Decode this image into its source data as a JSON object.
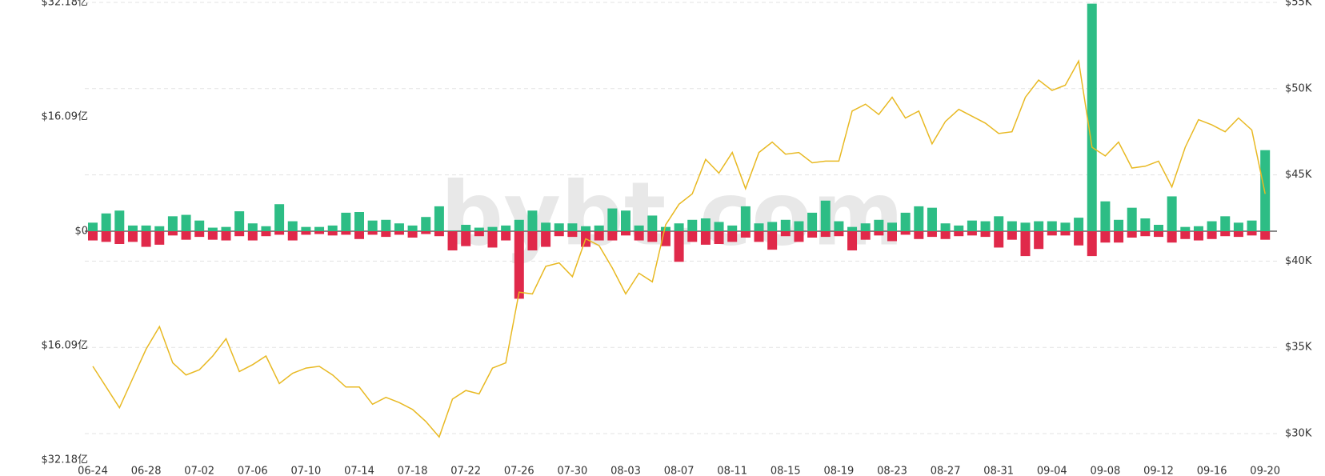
{
  "chart_data": {
    "type": "bar-line",
    "watermark": "bybt.com",
    "categories": [
      "06-24",
      null,
      null,
      null,
      "06-28",
      null,
      null,
      null,
      "07-02",
      null,
      null,
      null,
      "07-06",
      null,
      null,
      null,
      "07-10",
      null,
      null,
      null,
      "07-14",
      null,
      null,
      null,
      "07-18",
      null,
      null,
      null,
      "07-22",
      null,
      null,
      null,
      "07-26",
      null,
      null,
      null,
      "07-30",
      null,
      null,
      null,
      "08-03",
      null,
      null,
      null,
      "08-07",
      null,
      null,
      null,
      "08-11",
      null,
      null,
      null,
      "08-15",
      null,
      null,
      null,
      "08-19",
      null,
      null,
      null,
      "08-23",
      null,
      null,
      null,
      "08-27",
      null,
      null,
      null,
      "08-31",
      null,
      null,
      null,
      "09-04",
      null,
      null,
      null,
      "09-08",
      null,
      null,
      null,
      "09-12",
      null,
      null,
      null,
      "09-16",
      null,
      null,
      null,
      "09-20"
    ],
    "ylim": [
      -32.18,
      32.18
    ],
    "yticks": [
      {
        "value": 32.18,
        "label": "$32.18亿"
      },
      {
        "value": 16.09,
        "label": "$16.09亿"
      },
      {
        "value": 0,
        "label": "$0"
      },
      {
        "value": -16.09,
        "label": "$16.09亿"
      },
      {
        "value": -32.18,
        "label": "$32.18亿"
      }
    ],
    "y2lim": [
      30000,
      55000
    ],
    "y2ticks": [
      {
        "value": 55000,
        "label": "$55K"
      },
      {
        "value": 50000,
        "label": "$50K"
      },
      {
        "value": 45000,
        "label": "$45K"
      },
      {
        "value": 40000,
        "label": "$40K"
      },
      {
        "value": 35000,
        "label": "$35K"
      },
      {
        "value": 30000,
        "label": "$30K"
      }
    ],
    "grid": true,
    "series": [
      {
        "type": "bar",
        "color": "#2dbd85",
        "values": [
          1.2,
          2.5,
          2.9,
          0.8,
          0.8,
          0.7,
          2.1,
          2.3,
          1.5,
          0.5,
          0.6,
          2.8,
          1.1,
          0.7,
          3.8,
          1.4,
          0.6,
          0.6,
          0.8,
          2.6,
          2.7,
          1.5,
          1.6,
          1.1,
          0.8,
          2.0,
          3.5,
          0.1,
          0.9,
          0.5,
          0.6,
          0.8,
          1.6,
          2.9,
          1.2,
          1.1,
          1.1,
          0.7,
          0.8,
          3.2,
          2.9,
          0.8,
          2.2,
          0.6,
          1.1,
          1.6,
          1.8,
          1.3,
          0.8,
          3.5,
          1.1,
          1.3,
          1.6,
          1.4,
          2.6,
          4.3,
          1.4,
          0.6,
          1.1,
          1.6,
          1.2,
          2.6,
          3.5,
          3.3,
          1.1,
          0.8,
          1.5,
          1.4,
          2.1,
          1.4,
          1.2,
          1.4,
          1.4,
          1.2,
          1.9,
          32,
          4.2,
          1.6,
          3.3,
          1.8,
          0.9,
          4.9,
          0.6,
          0.7,
          1.4,
          2.1,
          1.2,
          1.5,
          11.4
        ]
      },
      {
        "type": "bar",
        "color": "#e0294a",
        "values": [
          -1.3,
          -1.5,
          -1.8,
          -1.5,
          -2.2,
          -1.9,
          -0.6,
          -1.2,
          -0.8,
          -1.2,
          -1.3,
          -0.7,
          -1.3,
          -0.7,
          -0.5,
          -1.3,
          -0.5,
          -0.4,
          -0.6,
          -0.5,
          -1.1,
          -0.5,
          -0.8,
          -0.5,
          -0.9,
          -0.4,
          -0.7,
          -2.7,
          -2.1,
          -0.7,
          -2.3,
          -1.3,
          -9.5,
          -2.7,
          -2.2,
          -0.7,
          -0.8,
          -2.2,
          -1.3,
          -1.3,
          -0.6,
          -1.3,
          -1.5,
          -2.1,
          -4.3,
          -1.5,
          -1.9,
          -1.8,
          -1.5,
          -0.9,
          -1.5,
          -2.6,
          -0.7,
          -1.5,
          -0.9,
          -0.8,
          -0.7,
          -2.7,
          -1.2,
          -0.6,
          -1.4,
          -0.5,
          -1.1,
          -0.8,
          -1.1,
          -0.7,
          -0.6,
          -0.8,
          -2.3,
          -1.2,
          -3.5,
          -2.5,
          -0.6,
          -0.6,
          -2.0,
          -3.5,
          -1.6,
          -1.6,
          -0.9,
          -0.7,
          -0.8,
          -1.6,
          -1.1,
          -1.3,
          -1.1,
          -0.7,
          -0.8,
          -0.6,
          -1.2
        ]
      },
      {
        "type": "line",
        "axis": "y2",
        "color": "#e8b923",
        "values": [
          33900,
          32700,
          31500,
          33200,
          34900,
          36200,
          34100,
          33400,
          33700,
          34500,
          35500,
          33600,
          34000,
          34500,
          32900,
          33500,
          33800,
          33900,
          33400,
          32700,
          32700,
          31700,
          32100,
          31800,
          31400,
          30700,
          29800,
          32000,
          32500,
          32300,
          33800,
          34100,
          38200,
          38100,
          39700,
          39900,
          39100,
          41300,
          40900,
          39600,
          38100,
          39300,
          38800,
          42100,
          43300,
          43900,
          45900,
          45100,
          46300,
          44200,
          46300,
          46900,
          46200,
          46300,
          45700,
          45800,
          45800,
          48700,
          49100,
          48500,
          49500,
          48300,
          48700,
          46800,
          48100,
          48800,
          48400,
          48000,
          47400,
          47500,
          49500,
          50500,
          49900,
          50200,
          51600,
          46600,
          46100,
          46900,
          45400,
          45500,
          45800,
          44300,
          46600,
          48200,
          47900,
          47500,
          48300,
          47600,
          43900
        ]
      }
    ]
  }
}
